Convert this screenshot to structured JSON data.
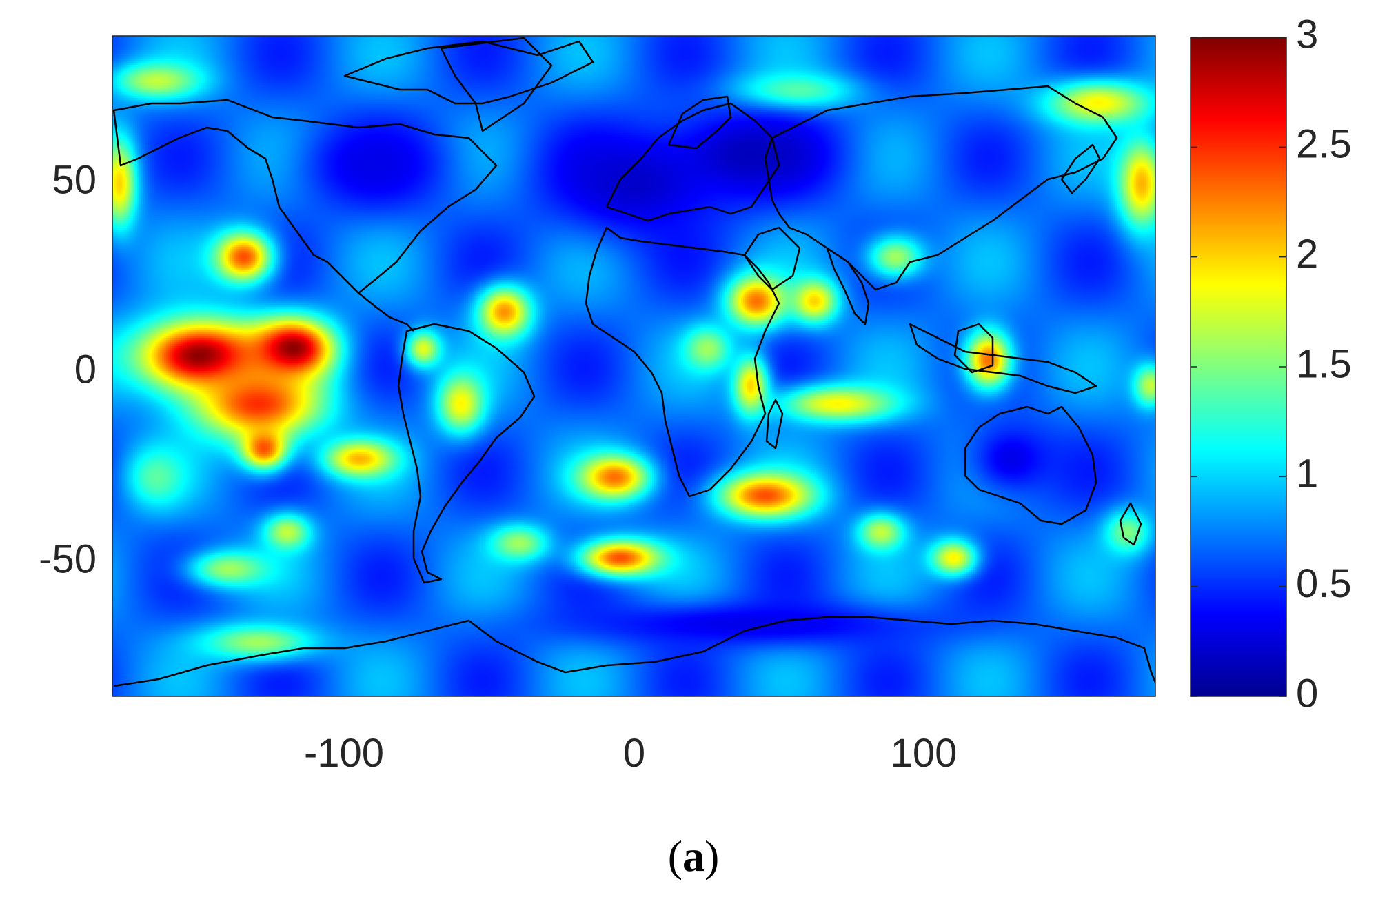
{
  "chart_data": {
    "type": "heatmap",
    "subtype": "global map with coastlines and country borders",
    "title": "",
    "xlabel": "",
    "ylabel": "",
    "xlim": [
      -180,
      180
    ],
    "ylim": [
      -90,
      90
    ],
    "x_ticks": [
      -100,
      0,
      100
    ],
    "y_ticks": [
      50,
      0,
      -50
    ],
    "x_tick_labels": [
      "-100",
      "0",
      "100"
    ],
    "y_tick_labels": [
      "50",
      "0",
      "-50"
    ],
    "colormap": "jet",
    "colorbar": {
      "range": [
        0,
        3
      ],
      "ticks": [
        3,
        2.5,
        2,
        1.5,
        1,
        0.5,
        0
      ],
      "tick_labels": [
        "3",
        "2.5",
        "2",
        "1.5",
        "1",
        "0.5",
        "0"
      ],
      "colors": [
        "#00008f",
        "#0000ff",
        "#0080ff",
        "#00ffff",
        "#80ff80",
        "#ffff00",
        "#ff8000",
        "#ff0000",
        "#800000"
      ]
    },
    "background_value": 0.7,
    "hotspots": [
      {
        "lon": -150,
        "lat": 3,
        "value": 3.0,
        "spread_lon": 22,
        "spread_lat": 10
      },
      {
        "lon": -118,
        "lat": 5,
        "value": 3.0,
        "spread_lon": 14,
        "spread_lat": 8
      },
      {
        "lon": -130,
        "lat": -10,
        "value": 2.5,
        "spread_lon": 22,
        "spread_lat": 10
      },
      {
        "lon": -135,
        "lat": 30,
        "value": 2.4,
        "spread_lon": 10,
        "spread_lat": 7
      },
      {
        "lon": -128,
        "lat": -22,
        "value": 2.4,
        "spread_lon": 8,
        "spread_lat": 6
      },
      {
        "lon": -95,
        "lat": -25,
        "value": 2.1,
        "spread_lon": 12,
        "spread_lat": 5
      },
      {
        "lon": -45,
        "lat": 15,
        "value": 2.2,
        "spread_lon": 9,
        "spread_lat": 7
      },
      {
        "lon": -7,
        "lat": -30,
        "value": 2.3,
        "spread_lon": 12,
        "spread_lat": 6
      },
      {
        "lon": 45,
        "lat": -35,
        "value": 2.4,
        "spread_lon": 16,
        "spread_lat": 6
      },
      {
        "lon": -5,
        "lat": -52,
        "value": 2.4,
        "spread_lon": 14,
        "spread_lat": 5
      },
      {
        "lon": 42,
        "lat": 18,
        "value": 2.3,
        "spread_lon": 10,
        "spread_lat": 7
      },
      {
        "lon": 62,
        "lat": 18,
        "value": 2.0,
        "spread_lon": 8,
        "spread_lat": 6
      },
      {
        "lon": 40,
        "lat": -5,
        "value": 2.0,
        "spread_lon": 6,
        "spread_lat": 8
      },
      {
        "lon": 122,
        "lat": 2,
        "value": 2.3,
        "spread_lon": 8,
        "spread_lat": 8
      },
      {
        "lon": 70,
        "lat": -10,
        "value": 1.9,
        "spread_lon": 20,
        "spread_lat": 5
      },
      {
        "lon": -60,
        "lat": -10,
        "value": 1.9,
        "spread_lon": 8,
        "spread_lat": 8
      },
      {
        "lon": -73,
        "lat": 5,
        "value": 1.8,
        "spread_lon": 6,
        "spread_lat": 5
      },
      {
        "lon": 25,
        "lat": 5,
        "value": 1.6,
        "spread_lon": 8,
        "spread_lat": 6
      },
      {
        "lon": 175,
        "lat": 50,
        "value": 2.1,
        "spread_lon": 8,
        "spread_lat": 12
      },
      {
        "lon": -178,
        "lat": 50,
        "value": 2.0,
        "spread_lon": 6,
        "spread_lat": 12
      },
      {
        "lon": 160,
        "lat": 72,
        "value": 1.9,
        "spread_lon": 18,
        "spread_lat": 6
      },
      {
        "lon": -165,
        "lat": 78,
        "value": 1.7,
        "spread_lon": 15,
        "spread_lat": 5
      },
      {
        "lon": 55,
        "lat": 75,
        "value": 1.5,
        "spread_lon": 20,
        "spread_lat": 5
      },
      {
        "lon": 90,
        "lat": 30,
        "value": 1.6,
        "spread_lon": 10,
        "spread_lat": 6
      },
      {
        "lon": -140,
        "lat": -55,
        "value": 1.6,
        "spread_lon": 14,
        "spread_lat": 5
      },
      {
        "lon": -120,
        "lat": -45,
        "value": 1.7,
        "spread_lon": 8,
        "spread_lat": 5
      },
      {
        "lon": -40,
        "lat": -48,
        "value": 1.6,
        "spread_lon": 10,
        "spread_lat": 5
      },
      {
        "lon": 110,
        "lat": -52,
        "value": 1.9,
        "spread_lon": 8,
        "spread_lat": 5
      },
      {
        "lon": 85,
        "lat": -45,
        "value": 1.7,
        "spread_lon": 8,
        "spread_lat": 5
      },
      {
        "lon": 170,
        "lat": -45,
        "value": 1.5,
        "spread_lon": 8,
        "spread_lat": 6
      },
      {
        "lon": -130,
        "lat": -75,
        "value": 1.6,
        "spread_lon": 20,
        "spread_lat": 5
      },
      {
        "lon": 178,
        "lat": -5,
        "value": 1.7,
        "spread_lon": 6,
        "spread_lat": 6
      },
      {
        "lon": -165,
        "lat": -30,
        "value": 1.4,
        "spread_lon": 10,
        "spread_lat": 8
      },
      {
        "lon": 0,
        "lat": 50,
        "value": 0.2,
        "spread_lon": 30,
        "spread_lat": 15
      },
      {
        "lon": 40,
        "lat": 58,
        "value": 0.15,
        "spread_lon": 30,
        "spread_lat": 12
      },
      {
        "lon": -90,
        "lat": 55,
        "value": 0.3,
        "spread_lon": 25,
        "spread_lat": 12
      },
      {
        "lon": 130,
        "lat": -25,
        "value": 0.3,
        "spread_lon": 15,
        "spread_lat": 10
      },
      {
        "lon": 40,
        "lat": -70,
        "value": 0.3,
        "spread_lon": 60,
        "spread_lat": 6
      }
    ]
  },
  "panel_label": {
    "open": "(",
    "letter": "a",
    "close": ")"
  }
}
